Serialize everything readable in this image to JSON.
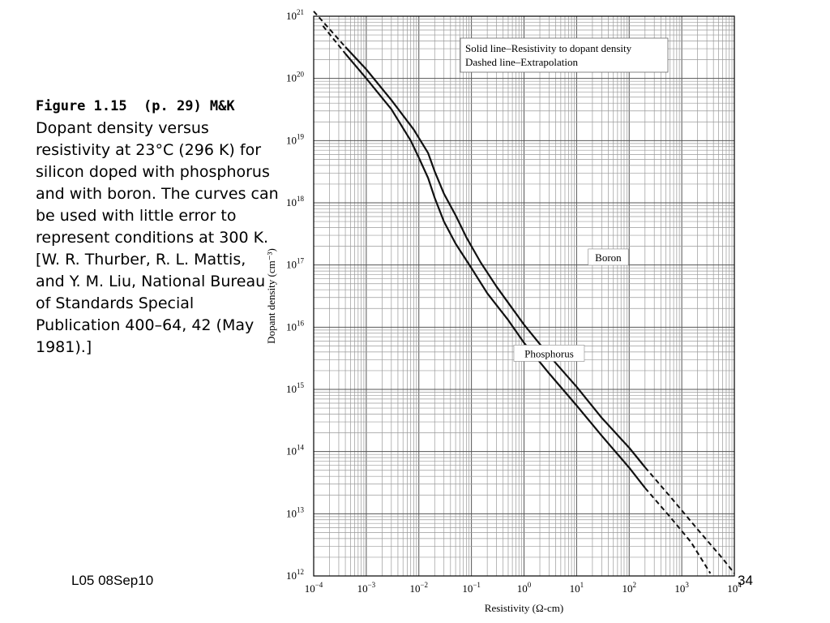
{
  "caption": {
    "heading": "Figure 1.15  (p. 29) M&K",
    "body": "Dopant density versus resistivity at 23°C (296 K) for silicon doped with phosphorus and with boron. The curves can be used with little error to represent conditions at 300 K. [W. R. Thurber, R. L. Mattis, and Y. M. Liu, National Bureau of Standards Special Publication 400–64, 42 (May 1981).]"
  },
  "footer": {
    "left": "L05 08Sep10",
    "right": "34"
  },
  "chart_data": {
    "type": "line",
    "xscale": "log",
    "yscale": "log",
    "xlim": [
      0.0001,
      10000
    ],
    "ylim": [
      1000000000000.0,
      1e+21
    ],
    "xlabel": "Resistivity (Ω-cm)",
    "ylabel": "Dopant density (cm⁻³)",
    "x_ticks": [
      {
        "base": "10",
        "exp": "−4"
      },
      {
        "base": "10",
        "exp": "−3"
      },
      {
        "base": "10",
        "exp": "−2"
      },
      {
        "base": "10",
        "exp": "−1"
      },
      {
        "base": "10",
        "exp": "0"
      },
      {
        "base": "10",
        "exp": "1"
      },
      {
        "base": "10",
        "exp": "2"
      },
      {
        "base": "10",
        "exp": "3"
      },
      {
        "base": "10",
        "exp": "4"
      }
    ],
    "y_ticks": [
      {
        "base": "10",
        "exp": "12"
      },
      {
        "base": "10",
        "exp": "13"
      },
      {
        "base": "10",
        "exp": "14"
      },
      {
        "base": "10",
        "exp": "15"
      },
      {
        "base": "10",
        "exp": "16"
      },
      {
        "base": "10",
        "exp": "17"
      },
      {
        "base": "10",
        "exp": "18"
      },
      {
        "base": "10",
        "exp": "19"
      },
      {
        "base": "10",
        "exp": "20"
      },
      {
        "base": "10",
        "exp": "21"
      }
    ],
    "grid": true,
    "legend": {
      "position": "top-right",
      "lines": [
        "Solid line–Resistivity to dopant density",
        "Dashed line–Extrapolation"
      ]
    },
    "series": [
      {
        "name": "Boron",
        "solid": [
          [
            0.0004,
            3.2e+20
          ],
          [
            0.001,
            1.4e+20
          ],
          [
            0.003,
            4.5e+19
          ],
          [
            0.008,
            1.5e+19
          ],
          [
            0.015,
            6.3e+18
          ],
          [
            0.02,
            3.2e+18
          ],
          [
            0.03,
            1.4e+18
          ],
          [
            0.05,
            6.3e+17
          ],
          [
            0.08,
            2.8e+17
          ],
          [
            0.15,
            1.1e+17
          ],
          [
            0.3,
            4.5e+16
          ],
          [
            0.6,
            2e+16
          ],
          [
            1,
            1.1e+16
          ],
          [
            3,
            3500000000000000.0
          ],
          [
            10,
            1100000000000000.0
          ],
          [
            30,
            350000000000000.0
          ],
          [
            100,
            115000000000000.0
          ],
          [
            200,
            56000000000000.0
          ]
        ],
        "dashed": [
          [
            0.0001,
            1.2e+21
          ],
          [
            0.0004,
            3.2e+20
          ],
          [
            200,
            56000000000000.0
          ],
          [
            600,
            19000000000000.0
          ],
          [
            2000,
            5600000000000.0
          ],
          [
            6000,
            1900000000000.0
          ],
          [
            10000,
            1100000000000.0
          ]
        ]
      },
      {
        "name": "Phosphorus",
        "solid": [
          [
            0.0004,
            2.5e+20
          ],
          [
            0.001,
            1e+20
          ],
          [
            0.003,
            3.2e+19
          ],
          [
            0.007,
            1e+19
          ],
          [
            0.01,
            5.3e+18
          ],
          [
            0.015,
            2.5e+18
          ],
          [
            0.02,
            1.2e+18
          ],
          [
            0.03,
            5e+17
          ],
          [
            0.05,
            2.2e+17
          ],
          [
            0.1,
            8.9e+16
          ],
          [
            0.2,
            3.5e+16
          ],
          [
            0.5,
            1.3e+16
          ],
          [
            1,
            5600000000000000.0
          ],
          [
            3,
            1800000000000000.0
          ],
          [
            10,
            550000000000000.0
          ],
          [
            30,
            180000000000000.0
          ],
          [
            100,
            55000000000000.0
          ],
          [
            200,
            26000000000000.0
          ]
        ],
        "dashed": [
          [
            0.00015,
            7e+20
          ],
          [
            0.0004,
            2.5e+20
          ],
          [
            200,
            26000000000000.0
          ],
          [
            600,
            8900000000000.0
          ],
          [
            1500,
            3500000000000.0
          ],
          [
            3500,
            1100000000000.0
          ]
        ]
      }
    ],
    "annotations": [
      {
        "text": "Boron",
        "x": 40,
        "y": 1.3e+17
      },
      {
        "text": "Phosphorus",
        "x": 3,
        "y": 3700000000000000.0
      }
    ]
  }
}
